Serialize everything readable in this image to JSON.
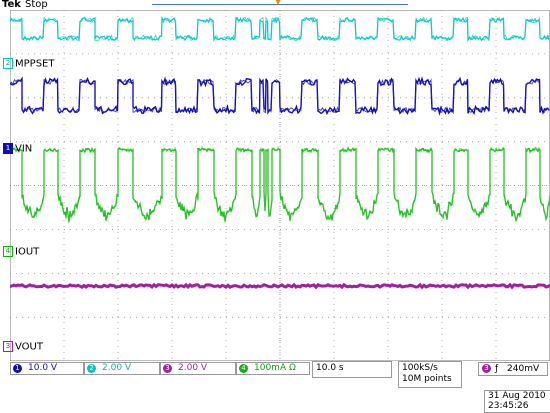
{
  "header": {
    "brand": "Tek",
    "state": "Stop",
    "trigger_marker": "▼"
  },
  "channels": [
    {
      "id": "1",
      "name": "VIN",
      "scale": "10.0 V",
      "color": "#1010b0"
    },
    {
      "id": "2",
      "name": "MPPSET",
      "scale": "2.00 V",
      "color": "#10d0d0"
    },
    {
      "id": "3",
      "name": "VOUT",
      "scale": "2.00 V",
      "color": "#a020a0"
    },
    {
      "id": "4",
      "name": "IOUT",
      "scale": "100mA Ω",
      "color": "#10b010"
    }
  ],
  "timebase": "10.0 s",
  "acquisition": {
    "rate": "100kS/s",
    "points": "10M points"
  },
  "trigger": {
    "channel": "3",
    "slope": "ƒ",
    "level": "240mV"
  },
  "date": "31 Aug 2010",
  "time": "23:45:26"
}
